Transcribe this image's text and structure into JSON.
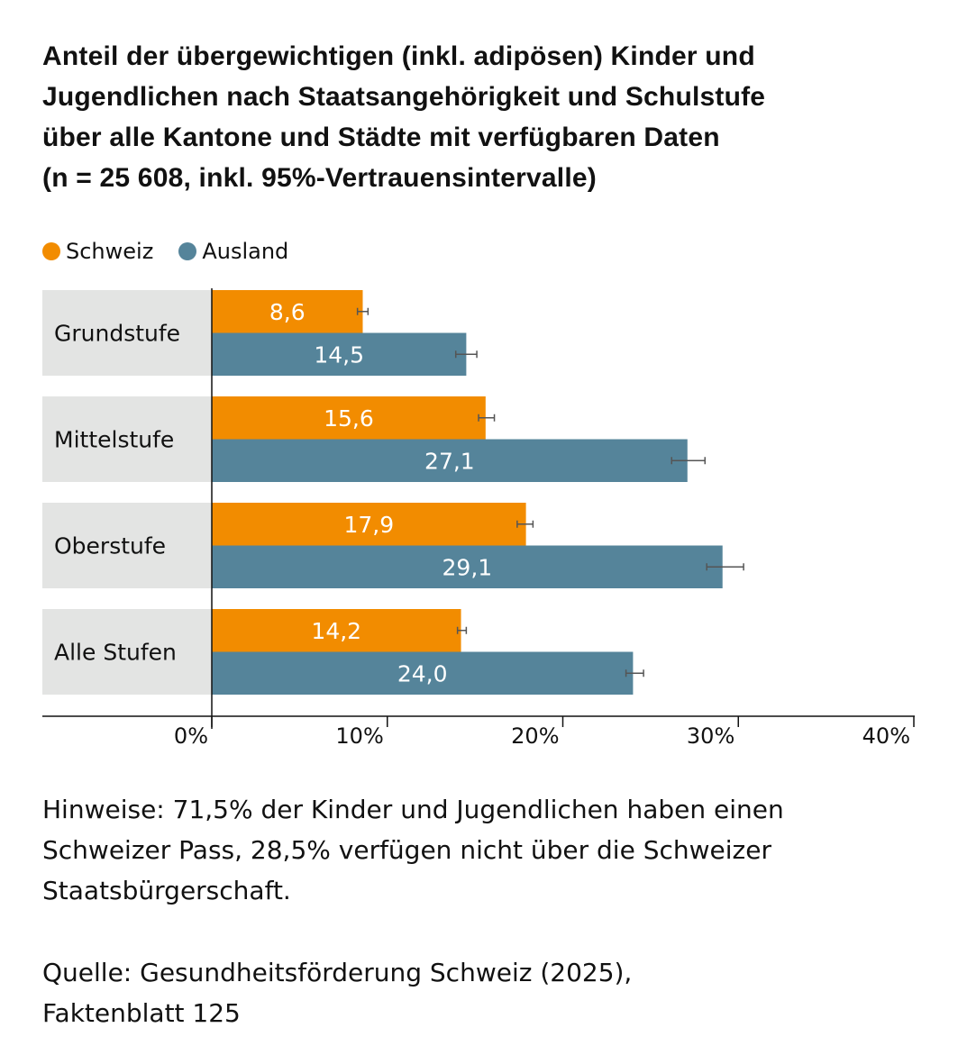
{
  "title_lines": [
    "Anteil der übergewichtigen (inkl. adipösen) Kinder und",
    "Jugendlichen nach Staatsangehörigkeit und Schulstufe",
    "über alle Kantone und Städte mit verfügbaren Daten",
    "(n = 25 608, inkl. 95%-Vertrauensintervalle)"
  ],
  "legend": [
    {
      "label": "Schweiz",
      "color": "#f28c00"
    },
    {
      "label": "Ausland",
      "color": "#55849a"
    }
  ],
  "notes": {
    "lines": [
      "Hinweise: 71,5% der Kinder und Jugendlichen haben einen",
      "Schweizer Pass, 28,5% verfügen nicht über die Schweizer",
      "Staatsbürgerschaft."
    ]
  },
  "source": {
    "lines": [
      "Quelle: Gesundheitsförderung Schweiz (2025),",
      "Faktenblatt 125"
    ]
  },
  "chart_data": {
    "type": "bar",
    "orientation": "horizontal",
    "title": "Anteil der übergewichtigen (inkl. adipösen) Kinder und Jugendlichen nach Staatsangehörigkeit und Schulstufe über alle Kantone und Städte mit verfügbaren Daten (n = 25 608, inkl. 95%-Vertrauensintervalle)",
    "categories": [
      "Grundstufe",
      "Mittelstufe",
      "Oberstufe",
      "Alle Stufen"
    ],
    "series": [
      {
        "name": "Schweiz",
        "color": "#f28c00",
        "values": [
          8.6,
          15.6,
          17.9,
          14.2
        ],
        "labels": [
          "8,6",
          "15,6",
          "17,9",
          "14,2"
        ],
        "ci_low": [
          8.3,
          15.2,
          17.4,
          14.0
        ],
        "ci_high": [
          8.9,
          16.1,
          18.3,
          14.5
        ]
      },
      {
        "name": "Ausland",
        "color": "#55849a",
        "values": [
          14.5,
          27.1,
          29.1,
          24.0
        ],
        "labels": [
          "14,5",
          "27,1",
          "29,1",
          "24,0"
        ],
        "ci_low": [
          13.9,
          26.2,
          28.2,
          23.6
        ],
        "ci_high": [
          15.1,
          28.1,
          30.3,
          24.6
        ]
      }
    ],
    "xlabel": "",
    "ylabel": "",
    "xlim": [
      0,
      40
    ],
    "xticks": [
      0,
      10,
      20,
      30,
      40
    ],
    "xtick_labels": [
      "0%",
      "10%",
      "20%",
      "30%",
      "40%"
    ],
    "grid": false,
    "legend_position": "top-left",
    "category_panel_color": "#e3e4e3",
    "errorbar_color": "#555555"
  }
}
